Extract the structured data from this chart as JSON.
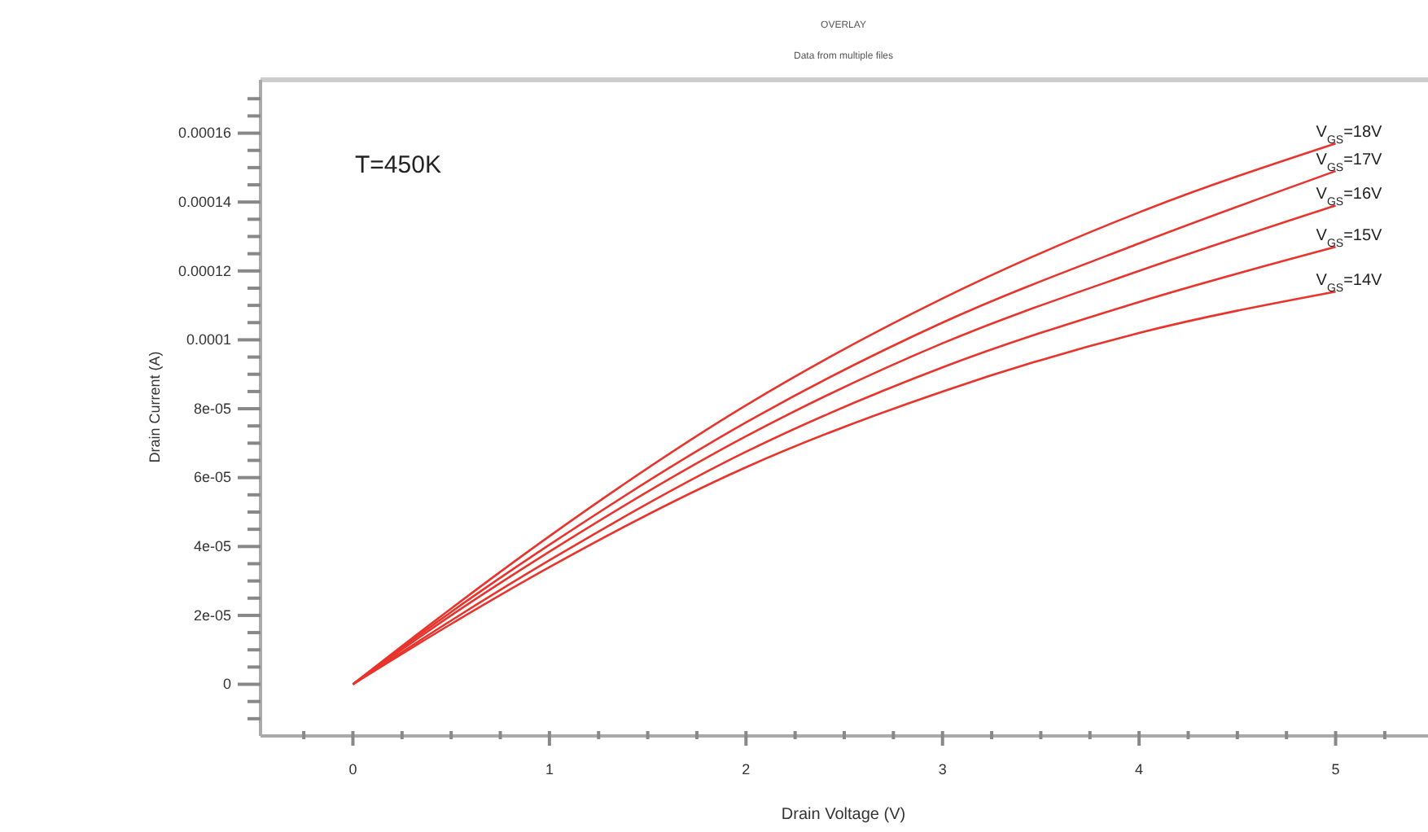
{
  "chart_data": {
    "type": "line",
    "title": "OVERLAY",
    "subtitle": "Data from multiple files",
    "xlabel": "Drain Voltage (V)",
    "ylabel": "Drain Current (A)",
    "annotations": [
      "T=450K"
    ],
    "x": [
      0,
      0.5,
      1,
      2,
      3,
      4,
      5
    ],
    "series": [
      {
        "name": "V$_{GS}$=18V",
        "color": "#e8342c",
        "values": [
          0,
          2.2e-05,
          4.3e-05,
          8.1e-05,
          0.000112,
          0.000137,
          0.000157
        ]
      },
      {
        "name": "V$_{GS}$=17V",
        "color": "#e8342c",
        "values": [
          0,
          2.1e-05,
          4.05e-05,
          7.6e-05,
          0.000105,
          0.000128,
          0.000149
        ]
      },
      {
        "name": "V$_{GS}$=16V",
        "color": "#e8342c",
        "values": [
          0,
          2e-05,
          3.85e-05,
          7.2e-05,
          9.9e-05,
          0.00012,
          0.000139
        ]
      },
      {
        "name": "V$_{GS}$=15V",
        "color": "#e8342c",
        "values": [
          0,
          1.85e-05,
          3.6e-05,
          6.75e-05,
          9.2e-05,
          0.000111,
          0.000127
        ]
      },
      {
        "name": "V$_{GS}$=14V",
        "color": "#e8342c",
        "values": [
          0,
          1.75e-05,
          3.4e-05,
          6.3e-05,
          8.5e-05,
          0.000102,
          0.000114
        ]
      }
    ],
    "xlim": [
      -0.47,
      5.47
    ],
    "xticks": [
      {
        "value": -0.25,
        "label": null
      },
      0,
      {
        "value": 0.25,
        "label": null
      },
      {
        "value": 0.5,
        "label": null
      },
      {
        "value": 0.75,
        "label": null
      },
      1,
      {
        "value": 1.25,
        "label": null
      },
      {
        "value": 1.5,
        "label": null
      },
      {
        "value": 1.75,
        "label": null
      },
      2,
      {
        "value": 2.25,
        "label": null
      },
      {
        "value": 2.5,
        "label": null
      },
      {
        "value": 2.75,
        "label": null
      },
      3,
      {
        "value": 3.25,
        "label": null
      },
      {
        "value": 3.5,
        "label": null
      },
      {
        "value": 3.75,
        "label": null
      },
      4,
      {
        "value": 4.25,
        "label": null
      },
      {
        "value": 4.5,
        "label": null
      },
      {
        "value": 4.75,
        "label": null
      },
      5,
      {
        "value": 5.25,
        "label": null
      }
    ],
    "ylim": [
      -1.5e-05,
      0.0001755
    ],
    "yticks": [
      {
        "value": -1e-05,
        "label": null
      },
      {
        "value": -5e-06,
        "label": null
      },
      0,
      {
        "value": 5e-06,
        "label": null
      },
      {
        "value": 1e-05,
        "label": null
      },
      {
        "value": 1.5e-05,
        "label": null
      },
      {
        "value": 2e-05,
        "label": "2e-05"
      },
      {
        "value": 2.5e-05,
        "label": null
      },
      {
        "value": 3e-05,
        "label": null
      },
      {
        "value": 3.5e-05,
        "label": null
      },
      {
        "value": 4e-05,
        "label": "4e-05"
      },
      {
        "value": 4.5e-05,
        "label": null
      },
      {
        "value": 5e-05,
        "label": null
      },
      {
        "value": 5.5e-05,
        "label": null
      },
      {
        "value": 6e-05,
        "label": "6e-05"
      },
      {
        "value": 6.5e-05,
        "label": null
      },
      {
        "value": 7e-05,
        "label": null
      },
      {
        "value": 7.5e-05,
        "label": null
      },
      {
        "value": 8e-05,
        "label": "8e-05"
      },
      {
        "value": 8.5e-05,
        "label": null
      },
      {
        "value": 9e-05,
        "label": null
      },
      {
        "value": 9.5e-05,
        "label": null
      },
      {
        "value": 0.0001,
        "label": "0.0001"
      },
      {
        "value": 0.000105,
        "label": null
      },
      {
        "value": 0.00011,
        "label": null
      },
      {
        "value": 0.000115,
        "label": null
      },
      {
        "value": 0.00012,
        "label": "0.00012"
      },
      {
        "value": 0.000125,
        "label": null
      },
      {
        "value": 0.00013,
        "label": null
      },
      {
        "value": 0.000135,
        "label": null
      },
      {
        "value": 0.00014,
        "label": "0.00014"
      },
      {
        "value": 0.000145,
        "label": null
      },
      {
        "value": 0.00015,
        "label": null
      },
      {
        "value": 0.000155,
        "label": null
      },
      {
        "value": 0.00016,
        "label": "0.00016"
      },
      {
        "value": 0.000165,
        "label": null
      },
      {
        "value": 0.00017,
        "label": null
      }
    ],
    "grid": false,
    "legend": false,
    "marker": "none",
    "line_style": "solid"
  }
}
